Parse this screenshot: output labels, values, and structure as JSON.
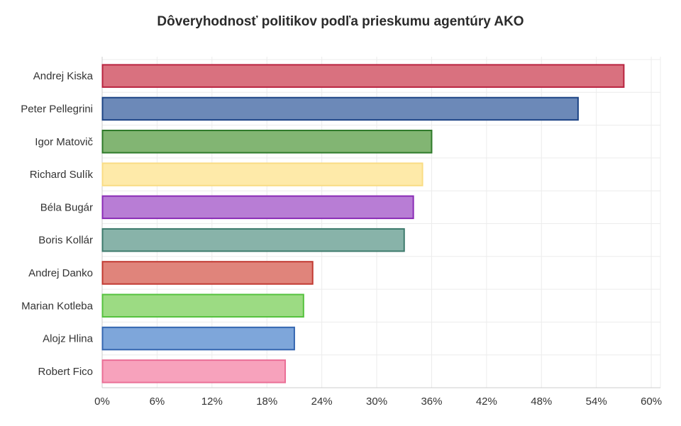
{
  "chart_data": {
    "type": "bar",
    "orientation": "horizontal",
    "title": "Dôveryhodnosť politikov podľa prieskumu agentúry AKO",
    "xlabel": "",
    "ylabel": "",
    "categories": [
      "Andrej Kiska",
      "Peter Pellegrini",
      "Igor Matovič",
      "Richard Sulík",
      "Béla Bugár",
      "Boris Kollár",
      "Andrej Danko",
      "Marian Kotleba",
      "Alojz Hlina",
      "Robert Fico"
    ],
    "values": [
      57,
      52,
      36,
      35,
      34,
      33,
      23,
      22,
      21,
      20
    ],
    "xlim": [
      0,
      61
    ],
    "x_ticks": [
      0,
      6,
      12,
      18,
      24,
      30,
      36,
      42,
      48,
      54,
      60
    ],
    "tick_suffix": "%",
    "grid": true,
    "legend": "none",
    "colors": {
      "fill": [
        "#d9717f",
        "#6c89b8",
        "#82b573",
        "#feeaa9",
        "#b87dd5",
        "#88b3a9",
        "#e0847b",
        "#9cdb83",
        "#7ea6da",
        "#f7a2bc"
      ],
      "stroke": [
        "#b8233f",
        "#1d4485",
        "#2f7a2a",
        "#f9dc84",
        "#8a2cb6",
        "#3d7a6c",
        "#c23a32",
        "#55c23e",
        "#3566b0",
        "#ea6f96"
      ],
      "grid": "#ececec",
      "axis": "#cccccc",
      "text": "#333333"
    }
  }
}
